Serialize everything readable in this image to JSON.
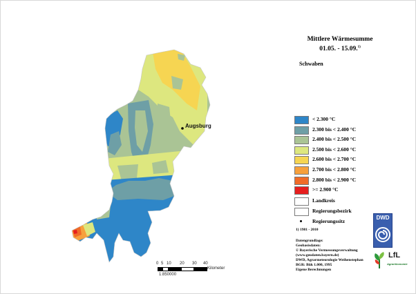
{
  "title": {
    "line1": "Mittlere Wärmesumme",
    "line2": "01.05. - 15.09.",
    "footnote_mark": "1)"
  },
  "region_name": "Schwaben",
  "city": {
    "name": "Augsburg"
  },
  "legend": {
    "classes": [
      {
        "label": "< 2.300 °C",
        "color": "#2e86c8"
      },
      {
        "label": "2.300 bis < 2.400 °C",
        "color": "#6e9fa6"
      },
      {
        "label": "2.400 bis < 2.500 °C",
        "color": "#aac495"
      },
      {
        "label": "2.500 bis < 2.600 °C",
        "color": "#dde77f"
      },
      {
        "label": "2.600 bis < 2.700 °C",
        "color": "#f6d552"
      },
      {
        "label": "2.700 bis < 2.800 °C",
        "color": "#f7a03c"
      },
      {
        "label": "2.800 bis < 2.900 °C",
        "color": "#f06b28"
      },
      {
        "label": ">= 2.900 °C",
        "color": "#e61e1e"
      }
    ],
    "symbols": [
      {
        "label": "Landkreis",
        "kind": "landkreis-box"
      },
      {
        "label": "Regierungsbezirk",
        "kind": "bezirk-box"
      },
      {
        "label": "Regierungssitz",
        "kind": "capital-dot"
      }
    ]
  },
  "footnote": "1) 1981 - 2010",
  "sources": [
    "Datengrundlage:",
    "Geobasisdaten:",
    "© Bayerische Vermessungsverwaltung",
    "(www.geodaten.bayern.de)",
    "DWD, Agrarmeteorologie Weihenstephan",
    "BGR: Bük 1.000, 1995",
    "Eigene Berechnungen"
  ],
  "scale": {
    "ticks": [
      "0",
      "5",
      "10",
      "20",
      "30",
      "40"
    ],
    "unit": "Kilometer",
    "ratio": "1:850000"
  },
  "logos": {
    "dwd": "DWD",
    "lfl": "LfL",
    "lfl_sub": "Agrarökonomie"
  }
}
